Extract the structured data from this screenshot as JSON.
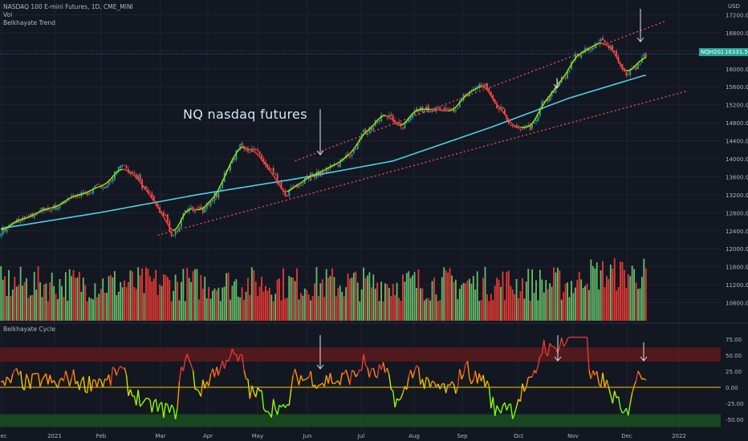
{
  "legend": {
    "title": "NASDAQ 100 E-mini Futures, 1D, CME_MINI",
    "vol": "Vol",
    "trend": "Belkhayate Trend",
    "cycle": "Belkhayate Cycle",
    "currency": "USD"
  },
  "annotation": "NQ  nasdaq futures",
  "last_price": {
    "symbol": "NQH2022",
    "value": "16331.50"
  },
  "colors": {
    "background": "#131722",
    "grid": "#1f2330",
    "bull": "#26a69a",
    "bear": "#ef5350",
    "vol_bull": "#66bb6a",
    "vol_bear": "#e53935",
    "ma": "#4dd0e1",
    "trend_up": "#a0e000",
    "trend_down": "#ff3b30",
    "channel": "#ef5350",
    "cycle_red": "#e53935",
    "cycle_orange": "#ff9800",
    "cycle_green": "#76ff03",
    "zone_red": "#5c1a1d",
    "zone_green": "#1b4d20",
    "zero_line": "#f5c518"
  },
  "chart_data": {
    "type": "candlestick",
    "x_ticks": [
      "Dec",
      "2021",
      "Feb",
      "Mar",
      "Apr",
      "May",
      "Jun",
      "Jul",
      "Aug",
      "Sep",
      "Oct",
      "Nov",
      "Dec",
      "2022"
    ],
    "price_ticks": [
      10800,
      11200,
      11600,
      12000,
      12400,
      12800,
      13200,
      13600,
      14000,
      14400,
      14800,
      15200,
      15600,
      16000,
      16400,
      16800,
      17200
    ],
    "price_tick_labels": [
      "10800.00",
      "11200.00",
      "11600.00",
      "12000.00",
      "12400.00",
      "12800.00",
      "13200.00",
      "13600.00",
      "14000.00",
      "14400.00",
      "14800.00",
      "15200.00",
      "15600.00",
      "16000.00",
      "16400.00",
      "16800.00",
      "17200.00"
    ],
    "price_range": [
      10400,
      17350
    ],
    "price_anchors": [
      [
        0,
        12400
      ],
      [
        10,
        12650
      ],
      [
        25,
        12900
      ],
      [
        40,
        13200
      ],
      [
        52,
        13400
      ],
      [
        62,
        13800
      ],
      [
        68,
        13650
      ],
      [
        75,
        13250
      ],
      [
        82,
        12800
      ],
      [
        88,
        12300
      ],
      [
        95,
        12900
      ],
      [
        102,
        12850
      ],
      [
        110,
        13200
      ],
      [
        116,
        13800
      ],
      [
        122,
        14300
      ],
      [
        130,
        14150
      ],
      [
        138,
        13700
      ],
      [
        145,
        13200
      ],
      [
        150,
        13400
      ],
      [
        160,
        13650
      ],
      [
        170,
        13850
      ],
      [
        178,
        14100
      ],
      [
        186,
        14600
      ],
      [
        196,
        15000
      ],
      [
        204,
        14700
      ],
      [
        212,
        15100
      ],
      [
        222,
        15100
      ],
      [
        230,
        15050
      ],
      [
        238,
        15450
      ],
      [
        246,
        15650
      ],
      [
        254,
        15150
      ],
      [
        262,
        14700
      ],
      [
        270,
        14700
      ],
      [
        278,
        15300
      ],
      [
        286,
        15750
      ],
      [
        294,
        16300
      ],
      [
        300,
        16450
      ],
      [
        306,
        16600
      ],
      [
        312,
        16450
      ],
      [
        318,
        15900
      ],
      [
        324,
        16050
      ],
      [
        328,
        16300
      ]
    ],
    "volume_range": [
      0,
      100
    ],
    "cycle_ticks": [
      75,
      50,
      25,
      0,
      -25,
      -50
    ],
    "cycle_tick_labels": [
      "75.00",
      "50.00",
      "25.00",
      "0.00",
      "-25.00",
      "-50.00"
    ],
    "cycle_range": [
      -65,
      85
    ],
    "cycle_zones": {
      "upper": [
        40,
        62
      ],
      "lower": [
        -62,
        -42
      ]
    }
  }
}
